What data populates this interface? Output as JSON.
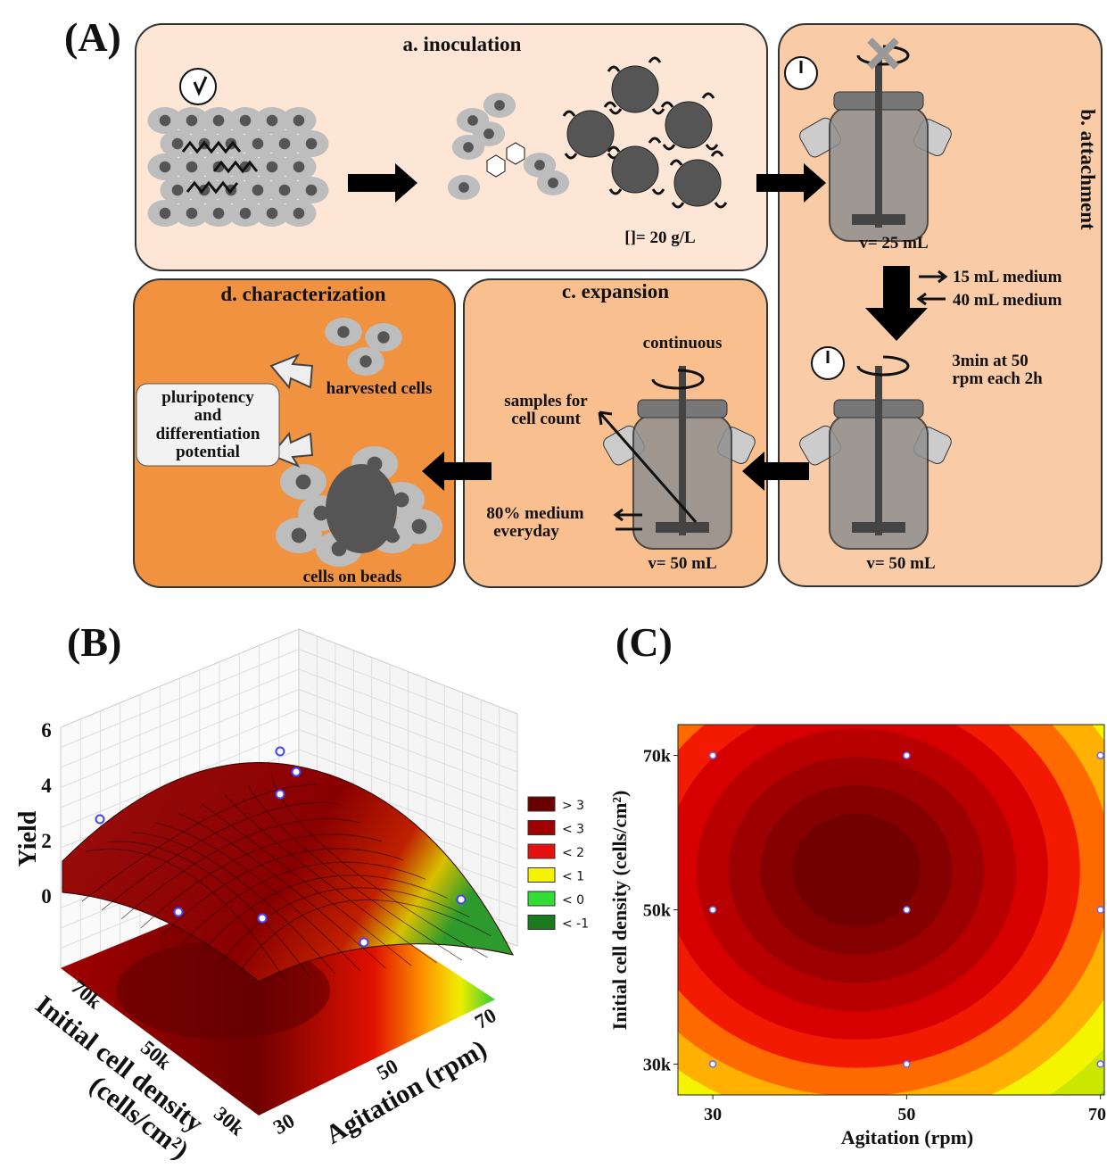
{
  "panel_a": {
    "label": "(A)",
    "inoculation": {
      "title": "a. inoculation",
      "concentration": "[]= 20 g/L"
    },
    "attachment": {
      "title": "b. attachment",
      "volume_initial": "v= 25 mL",
      "medium_out": "15 mL medium",
      "medium_in": "40 mL medium",
      "stirring": [
        "3min at 50",
        "rpm each 2h"
      ],
      "volume_final": "v= 50 mL"
    },
    "expansion": {
      "title": "c. expansion",
      "stirring": "continuous",
      "sampling": [
        "samples for",
        "cell count"
      ],
      "feeding": [
        "80% medium",
        "everyday"
      ],
      "volume": "v= 50 mL"
    },
    "characterization": {
      "title": "d. characterization",
      "harvested": "harvested cells",
      "assay": [
        "pluripotency",
        "and",
        "differentiation",
        "potential"
      ],
      "beads": "cells on beads"
    }
  },
  "panel_b": {
    "label": "(B)",
    "z_label": "Yield",
    "z_ticks": [
      6,
      4,
      2,
      0
    ],
    "density_ticks": [
      "70k",
      "50k",
      "30k"
    ],
    "agitation_ticks": [
      70,
      50,
      30
    ],
    "x_label": "Agitation (rpm)",
    "y_label": [
      "Initial cell density",
      "(cells/cm²)"
    ],
    "legend": [
      {
        "label": "> 3",
        "color": "#6a0000"
      },
      {
        "label": "< 3",
        "color": "#a00000"
      },
      {
        "label": "< 2",
        "color": "#e41010"
      },
      {
        "label": "< 1",
        "color": "#f4f400"
      },
      {
        "label": "< 0",
        "color": "#33dd33"
      },
      {
        "label": "< -1",
        "color": "#1b7a1b"
      }
    ]
  },
  "panel_c": {
    "label": "(C)",
    "x_label": "Agitation (rpm)",
    "y_label": "Initial cell density (cells/cm²)",
    "xlim": [
      26.4,
      70.4
    ],
    "ylim": [
      26,
      74
    ],
    "xticks": [
      30,
      50,
      70
    ],
    "yticks": [
      {
        "value": 30,
        "label": "30k"
      },
      {
        "value": 50,
        "label": "50k"
      },
      {
        "value": 70,
        "label": "70k"
      }
    ],
    "points": {
      "x": [
        30,
        50,
        70,
        30,
        50,
        70,
        30,
        50,
        70
      ],
      "y": [
        70,
        70,
        70,
        50,
        50,
        50,
        30,
        30,
        30
      ]
    }
  }
}
